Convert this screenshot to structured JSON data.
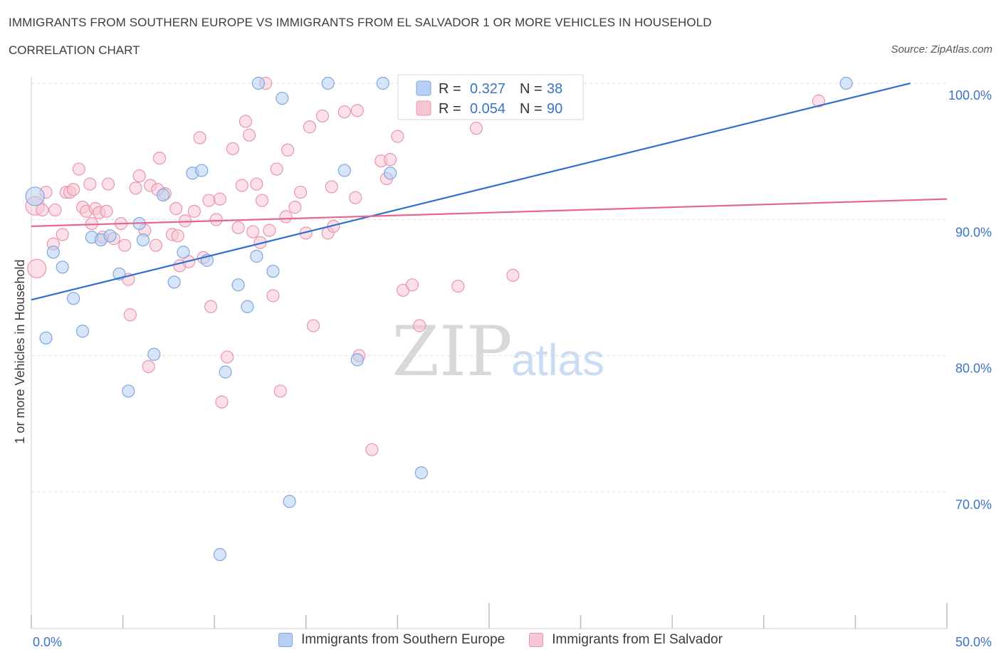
{
  "header": {
    "title": "IMMIGRANTS FROM SOUTHERN EUROPE VS IMMIGRANTS FROM EL SALVADOR 1 OR MORE VEHICLES IN HOUSEHOLD",
    "subtitle": "CORRELATION CHART",
    "source": "Source: ZipAtlas.com"
  },
  "colors": {
    "blue_fill": "#b7cff3",
    "blue_stroke": "#7ea6e0",
    "blue_line": "#2f6fd0",
    "pink_fill": "#f7c6d3",
    "pink_stroke": "#e896ad",
    "pink_line": "#e5668f",
    "tick_label": "#3a74c8",
    "grid": "#dcdcdc"
  },
  "stats_legend": {
    "rows": [
      {
        "series": "blue",
        "r_label": "R =",
        "r_value": "0.327",
        "n_label": "N =",
        "n_value": "38"
      },
      {
        "series": "pink",
        "r_label": "R =",
        "r_value": "0.054",
        "n_label": "N =",
        "n_value": "90"
      }
    ]
  },
  "watermark": {
    "zip": "ZIP",
    "atlas": "atlas"
  },
  "chart_data": {
    "type": "scatter",
    "xlabel": "",
    "ylabel": "1 or more Vehicles in Household",
    "xlim": [
      0,
      50
    ],
    "ylim": [
      60,
      100
    ],
    "x_tick_labels": [
      "0.0%",
      "50.0%"
    ],
    "y_ticks": [
      70,
      80,
      90,
      100
    ],
    "y_tick_labels": [
      "70.0%",
      "80.0%",
      "90.0%",
      "100.0%"
    ],
    "grid": true,
    "legend_position": "bottom",
    "series": [
      {
        "name": "Immigrants from Southern Europe",
        "color": "blue",
        "trend": {
          "x": [
            0,
            48
          ],
          "y": [
            84.1,
            100.0
          ]
        },
        "points": [
          [
            0.2,
            91.7
          ],
          [
            0.8,
            81.3
          ],
          [
            1.2,
            87.6
          ],
          [
            1.7,
            86.5
          ],
          [
            2.3,
            84.2
          ],
          [
            2.8,
            81.8
          ],
          [
            3.3,
            88.7
          ],
          [
            3.8,
            88.5
          ],
          [
            4.3,
            88.8
          ],
          [
            4.8,
            86.0
          ],
          [
            5.3,
            77.4
          ],
          [
            5.9,
            89.7
          ],
          [
            6.1,
            88.5
          ],
          [
            6.7,
            80.1
          ],
          [
            7.2,
            91.8
          ],
          [
            7.8,
            85.4
          ],
          [
            8.3,
            87.6
          ],
          [
            8.8,
            93.4
          ],
          [
            9.3,
            93.6
          ],
          [
            9.6,
            87.0
          ],
          [
            10.3,
            65.4
          ],
          [
            10.6,
            78.8
          ],
          [
            11.3,
            85.2
          ],
          [
            11.8,
            83.6
          ],
          [
            12.3,
            87.3
          ],
          [
            12.4,
            100.0
          ],
          [
            13.2,
            86.2
          ],
          [
            13.7,
            98.9
          ],
          [
            14.1,
            69.3
          ],
          [
            16.2,
            100.0
          ],
          [
            17.1,
            93.6
          ],
          [
            17.8,
            79.7
          ],
          [
            19.2,
            100.0
          ],
          [
            19.6,
            93.4
          ],
          [
            21.3,
            71.4
          ],
          [
            24.6,
            100.0
          ],
          [
            26.3,
            100.0
          ],
          [
            44.5,
            100.0
          ]
        ]
      },
      {
        "name": "Immigrants from El Salvador",
        "color": "pink",
        "trend": {
          "x": [
            0,
            50
          ],
          "y": [
            89.5,
            91.5
          ]
        },
        "points": [
          [
            0.2,
            91.0
          ],
          [
            0.3,
            86.4
          ],
          [
            0.6,
            90.7
          ],
          [
            0.8,
            92.0
          ],
          [
            1.2,
            88.2
          ],
          [
            1.3,
            90.7
          ],
          [
            1.7,
            88.9
          ],
          [
            1.9,
            92.0
          ],
          [
            2.1,
            92.0
          ],
          [
            2.3,
            92.2
          ],
          [
            2.6,
            93.7
          ],
          [
            2.8,
            90.9
          ],
          [
            3.0,
            90.6
          ],
          [
            3.2,
            92.6
          ],
          [
            3.3,
            89.7
          ],
          [
            3.5,
            90.8
          ],
          [
            3.7,
            90.5
          ],
          [
            3.9,
            88.7
          ],
          [
            4.1,
            90.6
          ],
          [
            4.2,
            92.6
          ],
          [
            4.5,
            88.6
          ],
          [
            4.9,
            89.7
          ],
          [
            5.1,
            88.1
          ],
          [
            5.3,
            85.6
          ],
          [
            5.4,
            83.0
          ],
          [
            5.7,
            92.3
          ],
          [
            5.9,
            93.2
          ],
          [
            6.2,
            89.2
          ],
          [
            6.4,
            79.2
          ],
          [
            6.5,
            92.5
          ],
          [
            6.8,
            88.1
          ],
          [
            7.0,
            94.5
          ],
          [
            7.3,
            91.9
          ],
          [
            7.7,
            88.9
          ],
          [
            7.9,
            90.8
          ],
          [
            8.1,
            86.6
          ],
          [
            8.4,
            89.9
          ],
          [
            8.6,
            86.9
          ],
          [
            8.9,
            90.6
          ],
          [
            9.2,
            96.0
          ],
          [
            9.4,
            87.2
          ],
          [
            9.7,
            91.4
          ],
          [
            9.8,
            83.6
          ],
          [
            10.1,
            90.0
          ],
          [
            10.3,
            91.5
          ],
          [
            10.4,
            76.6
          ],
          [
            10.7,
            79.9
          ],
          [
            11.0,
            95.2
          ],
          [
            11.3,
            89.4
          ],
          [
            11.5,
            92.5
          ],
          [
            11.7,
            97.2
          ],
          [
            11.9,
            96.2
          ],
          [
            12.1,
            89.1
          ],
          [
            12.3,
            92.6
          ],
          [
            12.5,
            88.3
          ],
          [
            12.8,
            100.0
          ],
          [
            13.0,
            89.2
          ],
          [
            13.2,
            84.4
          ],
          [
            13.4,
            93.7
          ],
          [
            13.6,
            77.4
          ],
          [
            13.9,
            90.2
          ],
          [
            14.0,
            95.1
          ],
          [
            14.4,
            90.9
          ],
          [
            14.7,
            92.0
          ],
          [
            15.0,
            89.0
          ],
          [
            15.2,
            96.8
          ],
          [
            15.4,
            82.2
          ],
          [
            15.9,
            97.6
          ],
          [
            16.2,
            89.0
          ],
          [
            16.4,
            92.4
          ],
          [
            16.5,
            89.5
          ],
          [
            17.1,
            97.9
          ],
          [
            17.7,
            91.6
          ],
          [
            17.8,
            98.0
          ],
          [
            17.9,
            80.0
          ],
          [
            18.6,
            73.1
          ],
          [
            19.1,
            94.3
          ],
          [
            19.4,
            93.0
          ],
          [
            19.6,
            94.4
          ],
          [
            20.0,
            96.1
          ],
          [
            20.3,
            84.8
          ],
          [
            20.8,
            85.2
          ],
          [
            21.2,
            82.2
          ],
          [
            23.3,
            85.1
          ],
          [
            24.3,
            96.7
          ],
          [
            26.3,
            85.9
          ],
          [
            43.0,
            98.7
          ],
          [
            8.0,
            88.8
          ],
          [
            6.9,
            92.2
          ],
          [
            12.6,
            91.4
          ]
        ]
      }
    ]
  },
  "bottom_legend": [
    {
      "series": "blue",
      "label": "Immigrants from Southern Europe"
    },
    {
      "series": "pink",
      "label": "Immigrants from El Salvador"
    }
  ]
}
